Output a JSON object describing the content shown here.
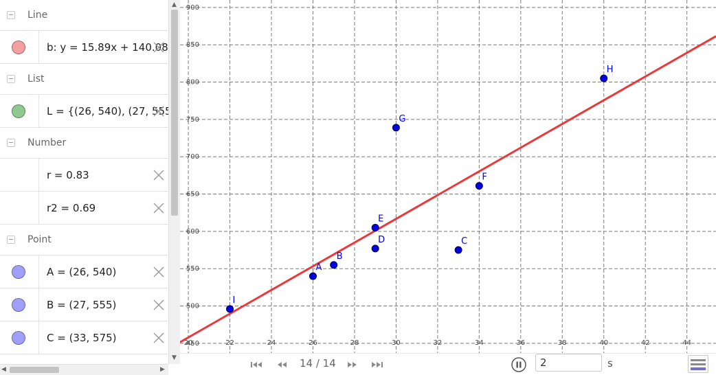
{
  "algebra": {
    "groups": [
      {
        "title": "Line",
        "items": [
          {
            "expr": "b: y = 15.89x + 140.08",
            "color": "#f4a0a0",
            "has_delete": true
          }
        ]
      },
      {
        "title": "List",
        "items": [
          {
            "expr": "L = {(26, 540), (27, 555),",
            "color": "#90c890",
            "has_delete": true
          }
        ]
      },
      {
        "title": "Number",
        "items": [
          {
            "expr": "r = 0.83",
            "color": null,
            "has_delete": true
          },
          {
            "expr": "r2 = 0.69",
            "color": null,
            "has_delete": true
          }
        ]
      },
      {
        "title": "Point",
        "items": [
          {
            "expr": "A = (26, 540)",
            "color": "#a0a0f8",
            "has_delete": true
          },
          {
            "expr": "B = (27, 555)",
            "color": "#a0a0f8",
            "has_delete": true
          },
          {
            "expr": "C = (33, 575)",
            "color": "#a0a0f8",
            "has_delete": true
          }
        ]
      }
    ]
  },
  "chart_data": {
    "type": "scatter",
    "x_ticks": [
      20,
      22,
      24,
      26,
      28,
      30,
      32,
      34,
      36,
      38,
      40,
      42,
      44
    ],
    "y_ticks": [
      450,
      500,
      550,
      600,
      650,
      700,
      750,
      800,
      850,
      900
    ],
    "xlim": [
      19.6,
      45.4
    ],
    "ylim": [
      437,
      910
    ],
    "grid": true,
    "points": [
      {
        "name": "A",
        "x": 26,
        "y": 540
      },
      {
        "name": "B",
        "x": 27,
        "y": 555
      },
      {
        "name": "C",
        "x": 33,
        "y": 575
      },
      {
        "name": "D",
        "x": 29,
        "y": 577
      },
      {
        "name": "E",
        "x": 29,
        "y": 605
      },
      {
        "name": "F",
        "x": 34,
        "y": 661
      },
      {
        "name": "G",
        "x": 30,
        "y": 739
      },
      {
        "name": "H",
        "x": 40,
        "y": 805
      },
      {
        "name": "I",
        "x": 22,
        "y": 496
      }
    ],
    "regression_line": {
      "slope": 15.89,
      "intercept": 140.08,
      "color": "#e83a3a"
    },
    "point_color": "#0000e0"
  },
  "player": {
    "counter": "14 / 14",
    "speed_value": "2",
    "speed_unit": "s"
  },
  "colors": {
    "grid": "#7a7a7a",
    "axis_text": "#444444"
  }
}
